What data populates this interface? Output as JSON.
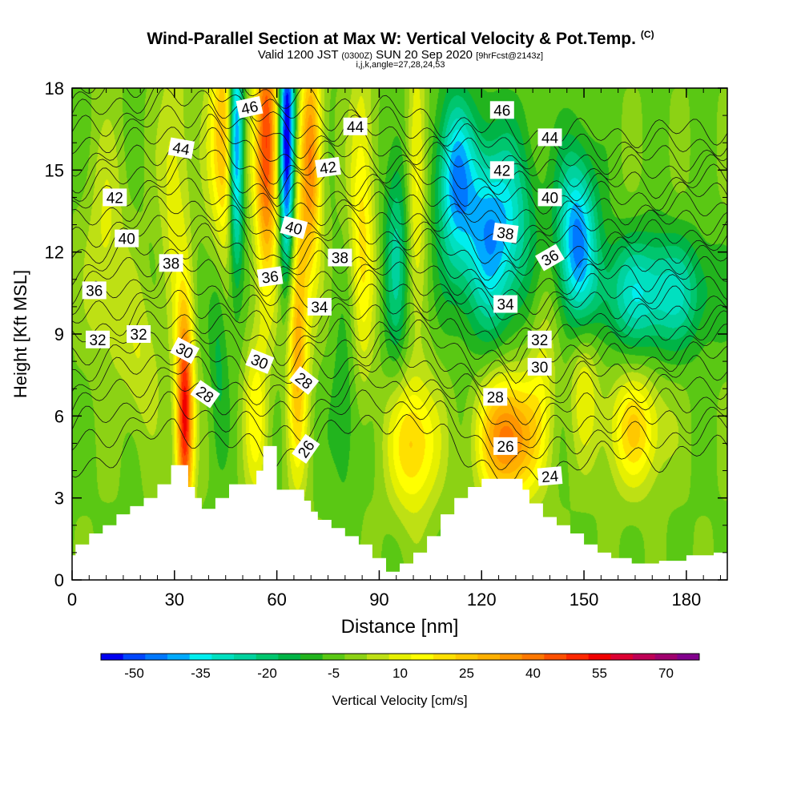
{
  "title": {
    "main": "Wind-Parallel Section at Max W: Vertical Velocity & Pot.Temp.",
    "copyright_mark": "(C)",
    "valid_prefix": "Valid 1200 JST",
    "valid_utc": "(0300Z)",
    "valid_date": "SUN 20 Sep 2020",
    "forecast": "[9hrFcst@2143z]",
    "indices": "i,j,k,angle=27,28,24,53"
  },
  "chart_data": {
    "type": "heatmap",
    "xlabel": "Distance [nm]",
    "ylabel": "Height [Kft MSL]",
    "xlim": [
      0,
      192
    ],
    "ylim": [
      0,
      18
    ],
    "x_ticks": [
      0,
      30,
      60,
      90,
      120,
      150,
      180
    ],
    "y_ticks": [
      0,
      3,
      6,
      9,
      12,
      15,
      18
    ],
    "colorbar": {
      "label": "Vertical Velocity [cm/s]",
      "tick_labels": [
        "-50",
        "-35",
        "-20",
        "-5",
        "10",
        "25",
        "40",
        "55",
        "70"
      ],
      "min": -57.5,
      "max": 77.5,
      "step": 5,
      "colors": [
        "#0000f0",
        "#0046ff",
        "#0078ff",
        "#00aaff",
        "#00eeee",
        "#00e0c0",
        "#00d29e",
        "#00c66e",
        "#00b446",
        "#22b41e",
        "#5ac814",
        "#8cd214",
        "#bee014",
        "#e6f000",
        "#ffff00",
        "#ffe000",
        "#ffc800",
        "#ffb000",
        "#ff9600",
        "#ff7800",
        "#ff5000",
        "#ff2800",
        "#f00000",
        "#dc0032",
        "#be0055",
        "#a0006e",
        "#82008c"
      ]
    },
    "terrain_profile": {
      "x": [
        0,
        1,
        1,
        5,
        5,
        9,
        9,
        13,
        13,
        17,
        17,
        21,
        21,
        25,
        25,
        29,
        29,
        34,
        34,
        36,
        36,
        38,
        38,
        42,
        42,
        46,
        46,
        54,
        54,
        56,
        56,
        60,
        60,
        68,
        68,
        70,
        70,
        72,
        72,
        76,
        76,
        80,
        80,
        84,
        84,
        88,
        88,
        92,
        92,
        96,
        96,
        100,
        100,
        104,
        104,
        108,
        108,
        112,
        112,
        116,
        116,
        120,
        120,
        124,
        124,
        132,
        132,
        134,
        134,
        138,
        138,
        142,
        142,
        146,
        146,
        150,
        150,
        154,
        154,
        158,
        158,
        164,
        164,
        172,
        172,
        180,
        180,
        188,
        188,
        192
      ],
      "h": [
        0.9,
        0.9,
        1.3,
        1.3,
        1.7,
        1.7,
        2.0,
        2.0,
        2.4,
        2.4,
        2.7,
        2.7,
        3.0,
        3.0,
        3.5,
        3.5,
        4.2,
        4.2,
        3.4,
        3.4,
        3.0,
        3.0,
        2.6,
        2.6,
        3.0,
        3.0,
        3.5,
        3.5,
        4.0,
        4.0,
        4.9,
        4.9,
        3.3,
        3.3,
        2.9,
        2.9,
        2.5,
        2.5,
        2.2,
        2.2,
        1.9,
        1.9,
        1.6,
        1.6,
        1.3,
        1.3,
        0.8,
        0.8,
        0.3,
        0.3,
        0.6,
        0.6,
        1.0,
        1.0,
        1.6,
        1.6,
        2.4,
        2.4,
        3.0,
        3.0,
        3.4,
        3.4,
        3.7,
        3.7,
        3.7,
        3.7,
        3.3,
        3.3,
        2.8,
        2.8,
        2.3,
        2.3,
        2.0,
        2.0,
        1.7,
        1.7,
        1.3,
        1.3,
        1.0,
        1.0,
        0.8,
        0.8,
        0.6,
        0.6,
        0.7,
        0.7,
        0.9,
        0.9,
        1.0,
        1.0
      ]
    },
    "velocity_features": [
      {
        "x": 33,
        "h": 6.0,
        "sx": 1.8,
        "sy": 2.8,
        "v": 60
      },
      {
        "x": 45,
        "h": 16.0,
        "sx": 3.2,
        "sy": 3.0,
        "v": 38
      },
      {
        "x": 48,
        "h": 16.0,
        "sx": 1.6,
        "sy": 3.2,
        "v": -60
      },
      {
        "x": 57,
        "h": 16.0,
        "sx": 2.4,
        "sy": 3.5,
        "v": 52
      },
      {
        "x": 63,
        "h": 16.0,
        "sx": 1.6,
        "sy": 3.5,
        "v": -60
      },
      {
        "x": 70,
        "h": 15.5,
        "sx": 2.2,
        "sy": 3.0,
        "v": 40
      },
      {
        "x": 66,
        "h": 9.0,
        "sx": 2.2,
        "sy": 3.5,
        "v": 35
      },
      {
        "x": 54,
        "h": 6.0,
        "sx": 2.5,
        "sy": 2.2,
        "v": 18
      },
      {
        "x": 100,
        "h": 5.0,
        "sx": 5.0,
        "sy": 1.8,
        "v": 28
      },
      {
        "x": 128,
        "h": 5.2,
        "sx": 6.0,
        "sy": 1.6,
        "v": 45
      },
      {
        "x": 123,
        "h": 12.8,
        "sx": 8.0,
        "sy": 2.5,
        "v": -40
      },
      {
        "x": 112,
        "h": 15.0,
        "sx": 3.5,
        "sy": 2.0,
        "v": -30
      },
      {
        "x": 148,
        "h": 12.6,
        "sx": 4.0,
        "sy": 2.2,
        "v": -40
      },
      {
        "x": 170,
        "h": 10.5,
        "sx": 12.0,
        "sy": 1.5,
        "v": -30
      },
      {
        "x": 165,
        "h": 5.5,
        "sx": 6.0,
        "sy": 1.5,
        "v": 25
      },
      {
        "x": 150,
        "h": 7.5,
        "sx": 3.0,
        "sy": 2.0,
        "v": 15
      },
      {
        "x": 30,
        "h": 14.5,
        "sx": 3.0,
        "sy": 3.5,
        "v": 14
      },
      {
        "x": 10,
        "h": 12.0,
        "sx": 4.0,
        "sy": 3.0,
        "v": 12
      },
      {
        "x": 85,
        "h": 13.0,
        "sx": 2.5,
        "sy": 4.0,
        "v": 22
      },
      {
        "x": 95,
        "h": 12.0,
        "sx": 2.5,
        "sy": 3.0,
        "v": -20
      },
      {
        "x": 101,
        "h": 15.0,
        "sx": 2.0,
        "sy": 3.0,
        "v": 20
      },
      {
        "x": 138,
        "h": 8.5,
        "sx": 3.0,
        "sy": 2.5,
        "v": 12
      },
      {
        "x": 80,
        "h": 6.0,
        "sx": 3.0,
        "sy": 2.5,
        "v": -10
      },
      {
        "x": 43,
        "h": 9.0,
        "sx": 2.0,
        "sy": 3.0,
        "v": -12
      },
      {
        "x": 20,
        "h": 8.0,
        "sx": 4.0,
        "sy": 2.0,
        "v": 10
      }
    ],
    "isentropes": {
      "theta_min": 24,
      "theta_max": 47,
      "surface_heights": {
        "x": [
          0,
          30,
          60,
          90,
          110,
          130,
          150,
          170,
          192
        ],
        "h": [
          4.0,
          5.6,
          4.5,
          6.0,
          5.2,
          3.4,
          4.6,
          4.5,
          4.8
        ]
      },
      "gradient_heights": {
        "x": [
          0,
          40,
          60,
          80,
          120,
          150,
          192
        ],
        "h": [
          18.0,
          19.5,
          17.5,
          17.5,
          16.5,
          16.3,
          16.5
        ]
      }
    },
    "contour_labels": [
      {
        "text": "46",
        "x": 52,
        "h": 17.3,
        "rot": -12
      },
      {
        "text": "44",
        "x": 32,
        "h": 15.8,
        "rot": 10
      },
      {
        "text": "44",
        "x": 83,
        "h": 16.6,
        "rot": 0
      },
      {
        "text": "42",
        "x": 12.5,
        "h": 14.0,
        "rot": 0
      },
      {
        "text": "42",
        "x": 75,
        "h": 15.1,
        "rot": -8
      },
      {
        "text": "40",
        "x": 16,
        "h": 12.5,
        "rot": 0
      },
      {
        "text": "40",
        "x": 65,
        "h": 12.9,
        "rot": 15
      },
      {
        "text": "38",
        "x": 29,
        "h": 11.6,
        "rot": 0
      },
      {
        "text": "38",
        "x": 78.5,
        "h": 11.8,
        "rot": 0
      },
      {
        "text": "36",
        "x": 6.5,
        "h": 10.6,
        "rot": 0
      },
      {
        "text": "36",
        "x": 58,
        "h": 11.1,
        "rot": -8
      },
      {
        "text": "34",
        "x": 72.5,
        "h": 10.0,
        "rot": 0
      },
      {
        "text": "32",
        "x": 7.5,
        "h": 8.8,
        "rot": 0
      },
      {
        "text": "32",
        "x": 19.5,
        "h": 9.0,
        "rot": 0
      },
      {
        "text": "30",
        "x": 33,
        "h": 8.4,
        "rot": 28
      },
      {
        "text": "30",
        "x": 55,
        "h": 8.0,
        "rot": 22
      },
      {
        "text": "28",
        "x": 39,
        "h": 6.8,
        "rot": 35
      },
      {
        "text": "28",
        "x": 68,
        "h": 7.3,
        "rot": 38
      },
      {
        "text": "26",
        "x": 68.5,
        "h": 4.8,
        "rot": -55
      },
      {
        "text": "46",
        "x": 126,
        "h": 17.2,
        "rot": 0
      },
      {
        "text": "44",
        "x": 140,
        "h": 16.2,
        "rot": 0
      },
      {
        "text": "42",
        "x": 126,
        "h": 15.0,
        "rot": 0
      },
      {
        "text": "40",
        "x": 140,
        "h": 14.0,
        "rot": 0
      },
      {
        "text": "38",
        "x": 127,
        "h": 12.7,
        "rot": 8
      },
      {
        "text": "36",
        "x": 140,
        "h": 11.8,
        "rot": -30
      },
      {
        "text": "34",
        "x": 127,
        "h": 10.1,
        "rot": 0
      },
      {
        "text": "32",
        "x": 137,
        "h": 8.8,
        "rot": 0
      },
      {
        "text": "30",
        "x": 137,
        "h": 7.8,
        "rot": 0
      },
      {
        "text": "28",
        "x": 124,
        "h": 6.7,
        "rot": 0
      },
      {
        "text": "26",
        "x": 127,
        "h": 4.9,
        "rot": 0
      },
      {
        "text": "24",
        "x": 140,
        "h": 3.8,
        "rot": -5
      }
    ]
  }
}
